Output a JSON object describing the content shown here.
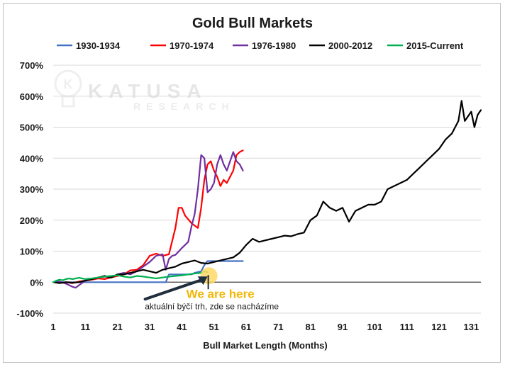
{
  "watermark": {
    "brand": "KATUSA",
    "sub": "RESEARCH"
  },
  "chart_data": {
    "type": "line",
    "title": "Gold Bull Markets",
    "xlabel": "Bull Market Length (Months)",
    "ylabel": "",
    "xlim": [
      1,
      134
    ],
    "ylim": [
      -100,
      700
    ],
    "x_ticks": [
      1,
      11,
      21,
      31,
      41,
      51,
      61,
      71,
      81,
      91,
      101,
      111,
      121,
      131
    ],
    "y_ticks": [
      -100,
      0,
      100,
      200,
      300,
      400,
      500,
      600,
      700
    ],
    "y_tick_labels": [
      "-100%",
      "0%",
      "100%",
      "200%",
      "300%",
      "400%",
      "500%",
      "600%",
      "700%"
    ],
    "legend_position": "top",
    "grid": "horizontal",
    "series": [
      {
        "name": "1930-1934",
        "color": "#4472c4",
        "x": [
          1,
          5,
          10,
          15,
          20,
          25,
          30,
          35,
          36,
          37,
          40,
          43,
          44,
          45,
          47,
          48,
          49,
          50,
          53,
          56,
          60
        ],
        "y": [
          0,
          0,
          0,
          0,
          0,
          0,
          0,
          0,
          0,
          25,
          25,
          25,
          25,
          30,
          35,
          55,
          68,
          68,
          68,
          68,
          68
        ]
      },
      {
        "name": "1970-1974",
        "color": "#ff0000",
        "x": [
          1,
          3,
          5,
          7,
          9,
          11,
          13,
          15,
          17,
          19,
          21,
          23,
          25,
          27,
          29,
          31,
          33,
          35,
          37,
          39,
          40,
          41,
          42,
          44,
          46,
          47,
          48,
          49,
          50,
          51,
          52,
          53,
          54,
          55,
          56,
          57,
          58,
          59,
          60
        ],
        "y": [
          0,
          -2,
          0,
          -3,
          2,
          5,
          8,
          12,
          10,
          15,
          20,
          25,
          38,
          40,
          55,
          85,
          92,
          85,
          90,
          175,
          240,
          240,
          215,
          190,
          175,
          240,
          330,
          380,
          390,
          360,
          340,
          310,
          330,
          320,
          340,
          360,
          410,
          420,
          425
        ]
      },
      {
        "name": "1976-1980",
        "color": "#7030a0",
        "x": [
          1,
          3,
          5,
          7,
          8,
          9,
          11,
          13,
          15,
          17,
          19,
          21,
          23,
          25,
          27,
          29,
          31,
          33,
          35,
          36,
          37,
          38,
          39,
          41,
          43,
          44,
          45,
          46,
          47,
          48,
          49,
          50,
          51,
          52,
          53,
          54,
          55,
          56,
          57,
          58,
          59,
          60
        ],
        "y": [
          0,
          2,
          -5,
          -15,
          -18,
          -10,
          5,
          10,
          15,
          18,
          15,
          25,
          30,
          25,
          35,
          50,
          65,
          85,
          90,
          40,
          75,
          85,
          88,
          110,
          130,
          180,
          220,
          300,
          410,
          400,
          290,
          300,
          320,
          380,
          410,
          380,
          360,
          390,
          420,
          390,
          380,
          360
        ]
      },
      {
        "name": "2000-2012",
        "color": "#000000",
        "x": [
          1,
          3,
          5,
          7,
          9,
          11,
          13,
          15,
          17,
          19,
          21,
          23,
          25,
          27,
          29,
          31,
          33,
          35,
          37,
          39,
          41,
          43,
          45,
          47,
          49,
          51,
          53,
          55,
          57,
          59,
          61,
          63,
          65,
          67,
          69,
          71,
          73,
          75,
          77,
          79,
          81,
          83,
          85,
          87,
          89,
          91,
          93,
          95,
          97,
          99,
          101,
          103,
          105,
          107,
          109,
          111,
          113,
          115,
          117,
          119,
          121,
          123,
          125,
          127,
          128,
          129,
          131,
          132,
          133,
          134
        ],
        "y": [
          0,
          -3,
          0,
          -2,
          0,
          5,
          10,
          15,
          20,
          15,
          25,
          25,
          30,
          35,
          40,
          35,
          30,
          40,
          45,
          50,
          60,
          65,
          70,
          62,
          60,
          65,
          70,
          75,
          80,
          95,
          120,
          140,
          130,
          135,
          140,
          145,
          150,
          148,
          155,
          160,
          200,
          215,
          260,
          240,
          230,
          240,
          195,
          230,
          240,
          250,
          250,
          260,
          300,
          310,
          320,
          330,
          350,
          370,
          390,
          410,
          430,
          460,
          480,
          520,
          585,
          520,
          550,
          500,
          540,
          555
        ]
      },
      {
        "name": "2015-Current",
        "color": "#00b050",
        "x": [
          1,
          2,
          3,
          4,
          5,
          6,
          7,
          8,
          9,
          10,
          11,
          13,
          15,
          17,
          19,
          21,
          23,
          25,
          27,
          29,
          31,
          33,
          35,
          37,
          39,
          41,
          43,
          45,
          47,
          48,
          49
        ],
        "y": [
          0,
          5,
          8,
          6,
          10,
          12,
          10,
          12,
          14,
          12,
          10,
          12,
          15,
          18,
          20,
          22,
          18,
          15,
          20,
          18,
          15,
          12,
          15,
          18,
          20,
          22,
          25,
          28,
          30,
          35,
          32
        ]
      }
    ],
    "annotation": {
      "label": "We are here",
      "sublabel": "aktuální býčí trh, zde se nacházíme",
      "target_x": 49,
      "target_y": 32,
      "marker_color": "#ffd966"
    }
  }
}
